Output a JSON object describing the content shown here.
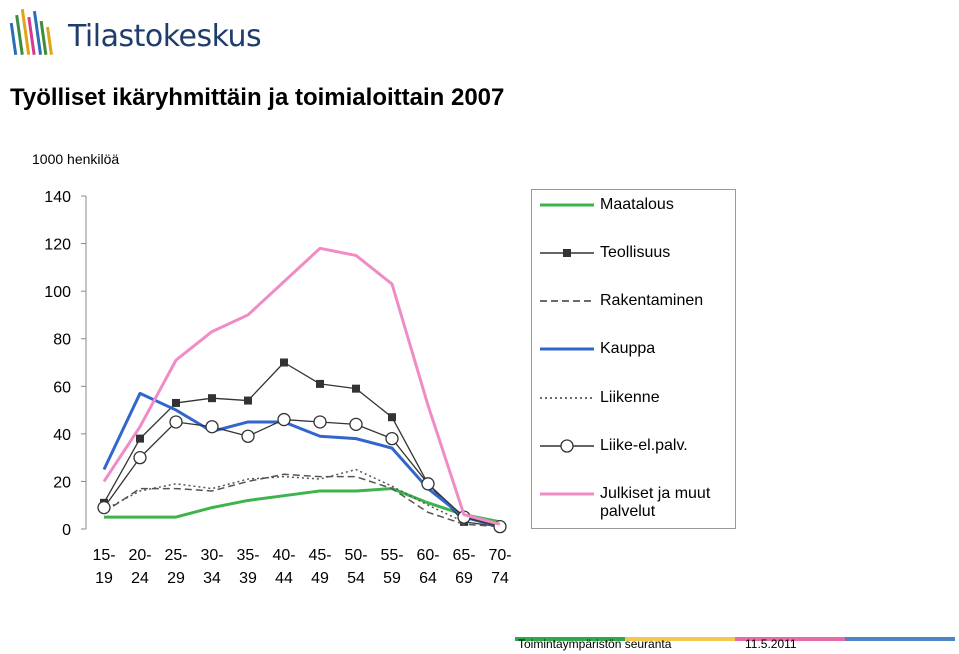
{
  "header": {
    "logo_text": "Tilastokeskus",
    "logo_icon": "tilastokeskus-logo-icon"
  },
  "footer": {
    "left_text": "Toimintaympäristön seuranta",
    "date": "11.5.2011",
    "bar_colors": [
      "#2ea84a",
      "#f2c94c",
      "#e86aa8",
      "#4a86c8"
    ]
  },
  "chart_data": {
    "type": "line",
    "title": "Työlliset ikäryhmittäin ja toimialoittain 2007",
    "ylabel": "1000 henkilöä",
    "ylim": [
      0,
      140
    ],
    "yticks": [
      0,
      20,
      40,
      60,
      80,
      100,
      120,
      140
    ],
    "grid": false,
    "legend_position": "right",
    "categories": [
      {
        "top": "15-",
        "bottom": "19"
      },
      {
        "top": "20-",
        "bottom": "24"
      },
      {
        "top": "25-",
        "bottom": "29"
      },
      {
        "top": "30-",
        "bottom": "34"
      },
      {
        "top": "35-",
        "bottom": "39"
      },
      {
        "top": "40-",
        "bottom": "44"
      },
      {
        "top": "45-",
        "bottom": "49"
      },
      {
        "top": "50-",
        "bottom": "54"
      },
      {
        "top": "55-",
        "bottom": "59"
      },
      {
        "top": "60-",
        "bottom": "64"
      },
      {
        "top": "65-",
        "bottom": "69"
      },
      {
        "top": "70-",
        "bottom": "74"
      }
    ],
    "series": [
      {
        "name": "Maatalous",
        "color": "#3cb44b",
        "dash": "solid",
        "marker": "none",
        "values": [
          5,
          5,
          5,
          9,
          12,
          14,
          16,
          16,
          17,
          11,
          6,
          3
        ]
      },
      {
        "name": "Teollisuus",
        "color": "#333333",
        "dash": "solid",
        "marker": "square",
        "values": [
          11,
          38,
          53,
          55,
          54,
          70,
          61,
          59,
          47,
          19,
          3,
          1
        ]
      },
      {
        "name": "Rakentaminen",
        "color": "#555555",
        "dash": "dash",
        "marker": "none",
        "values": [
          7,
          17,
          17,
          16,
          20,
          23,
          22,
          22,
          17,
          7,
          2,
          1
        ]
      },
      {
        "name": "Kauppa",
        "color": "#3366cc",
        "dash": "solid",
        "marker": "none",
        "values": [
          25,
          57,
          50,
          41,
          45,
          45,
          39,
          38,
          34,
          17,
          5,
          1
        ]
      },
      {
        "name": "Liikenne",
        "color": "#555555",
        "dash": "dot",
        "marker": "none",
        "values": [
          8,
          16,
          19,
          17,
          21,
          22,
          21,
          25,
          18,
          10,
          3,
          1
        ]
      },
      {
        "name": "Liike-el.palv.",
        "color": "#333333",
        "dash": "solid",
        "marker": "circle",
        "values": [
          9,
          30,
          45,
          43,
          39,
          46,
          45,
          44,
          38,
          19,
          5,
          1
        ]
      },
      {
        "name": "Julkiset ja muut palvelut",
        "name_lines": [
          "Julkiset ja muut",
          "palvelut"
        ],
        "color": "#f08cc4",
        "dash": "solid",
        "marker": "none",
        "values": [
          20,
          43,
          71,
          83,
          90,
          104,
          118,
          115,
          103,
          52,
          6,
          2
        ]
      }
    ]
  }
}
